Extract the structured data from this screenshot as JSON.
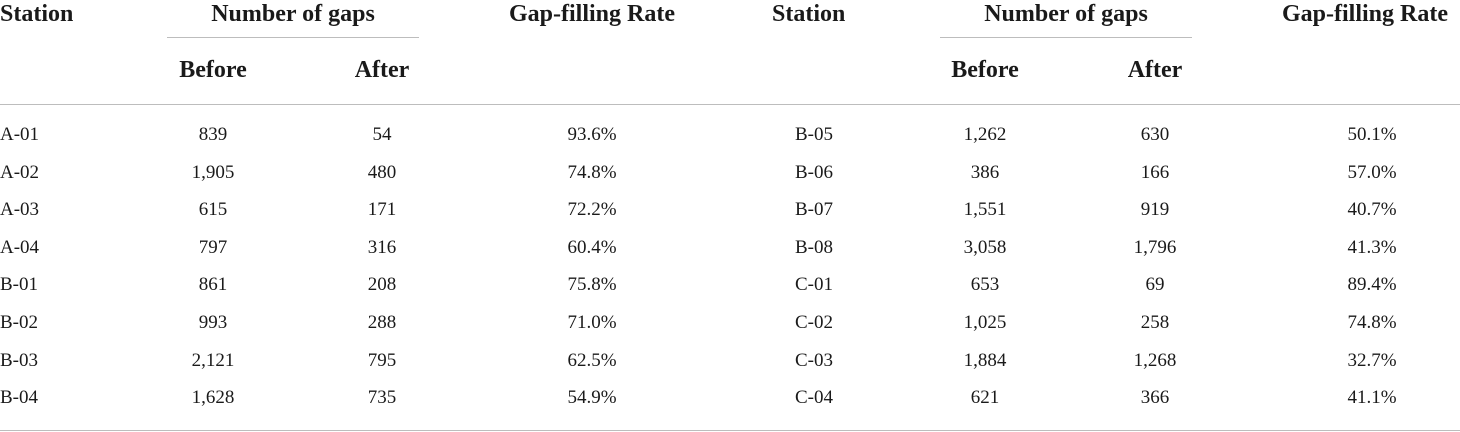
{
  "headers": {
    "station": "Station",
    "number_of_gaps": "Number of gaps",
    "before": "Before",
    "after": "After",
    "gap_filling_rate": "Gap-filling Rate"
  },
  "left_rows": [
    {
      "station": "A-01",
      "before": "839",
      "after": "54",
      "rate": "93.6%"
    },
    {
      "station": "A-02",
      "before": "1,905",
      "after": "480",
      "rate": "74.8%"
    },
    {
      "station": "A-03",
      "before": "615",
      "after": "171",
      "rate": "72.2%"
    },
    {
      "station": "A-04",
      "before": "797",
      "after": "316",
      "rate": "60.4%"
    },
    {
      "station": "B-01",
      "before": "861",
      "after": "208",
      "rate": "75.8%"
    },
    {
      "station": "B-02",
      "before": "993",
      "after": "288",
      "rate": "71.0%"
    },
    {
      "station": "B-03",
      "before": "2,121",
      "after": "795",
      "rate": "62.5%"
    },
    {
      "station": "B-04",
      "before": "1,628",
      "after": "735",
      "rate": "54.9%"
    }
  ],
  "right_rows": [
    {
      "station": "B-05",
      "before": "1,262",
      "after": "630",
      "rate": "50.1%"
    },
    {
      "station": "B-06",
      "before": "386",
      "after": "166",
      "rate": "57.0%"
    },
    {
      "station": "B-07",
      "before": "1,551",
      "after": "919",
      "rate": "40.7%"
    },
    {
      "station": "B-08",
      "before": "3,058",
      "after": "1,796",
      "rate": "41.3%"
    },
    {
      "station": "C-01",
      "before": "653",
      "after": "69",
      "rate": "89.4%"
    },
    {
      "station": "C-02",
      "before": "1,025",
      "after": "258",
      "rate": "74.8%"
    },
    {
      "station": "C-03",
      "before": "1,884",
      "after": "1,268",
      "rate": "32.7%"
    },
    {
      "station": "C-04",
      "before": "621",
      "after": "366",
      "rate": "41.1%"
    }
  ]
}
